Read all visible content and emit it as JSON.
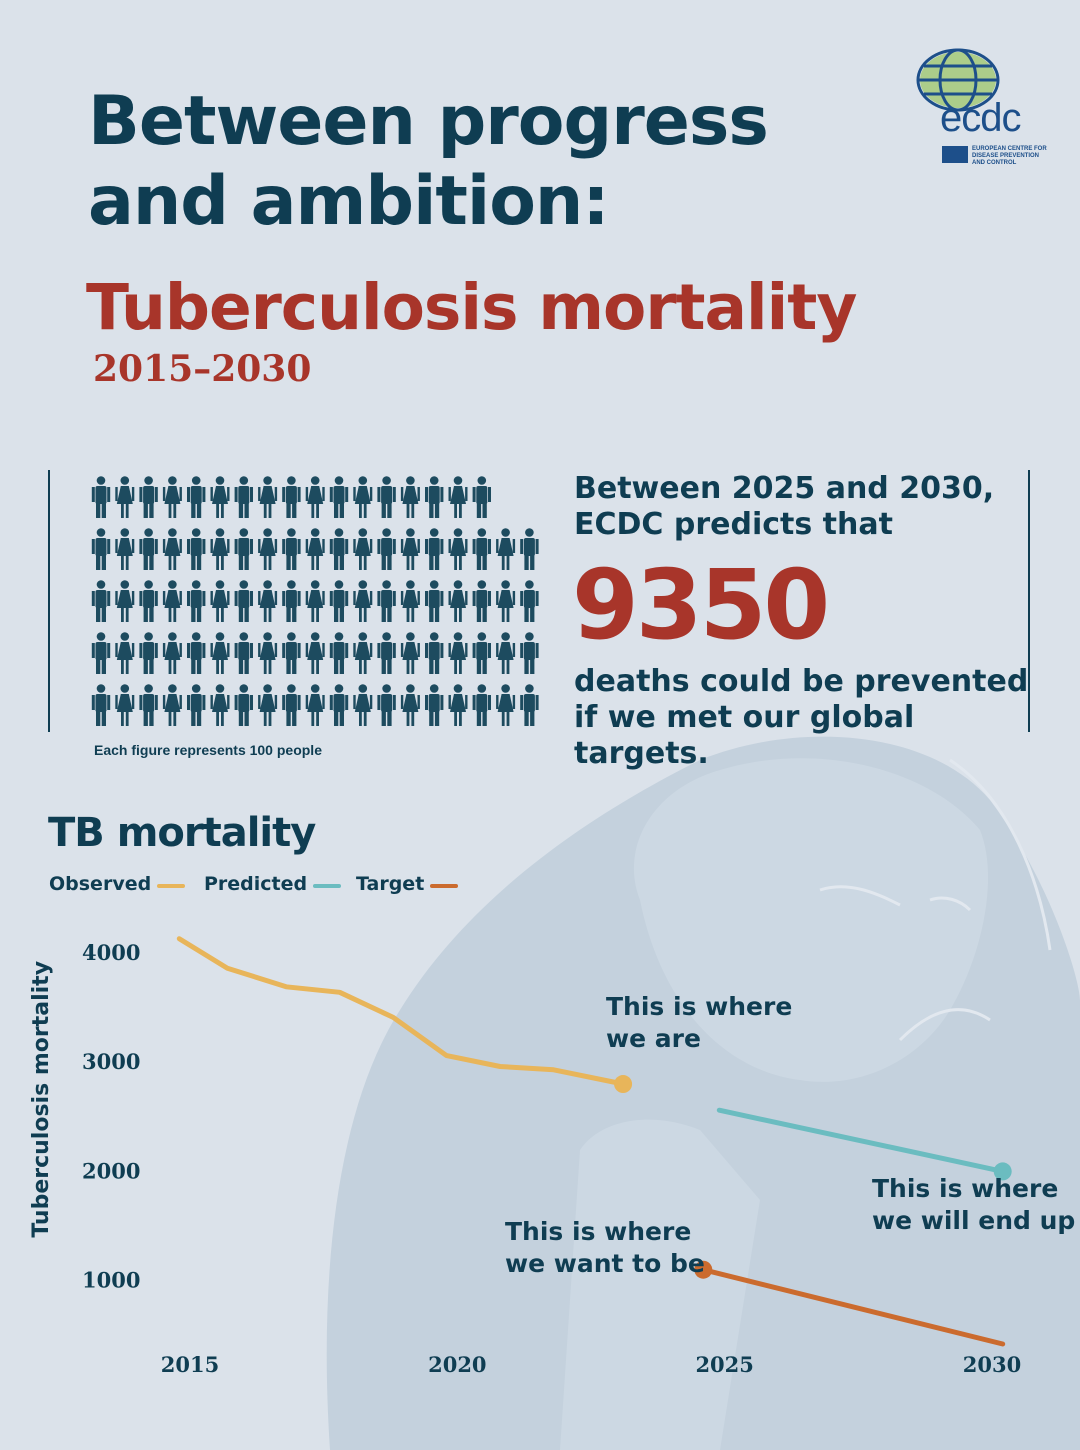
{
  "header": {
    "title_line1": "Between progress",
    "title_line2": "and ambition:",
    "subtitle": "Tuberculosis mortality",
    "years": "2015–2030"
  },
  "logo": {
    "wordmark": "ecdc",
    "subtext": "EUROPEAN CENTRE FOR DISEASE PREVENTION AND CONTROL",
    "icon": "globe-icon"
  },
  "pictogram": {
    "caption": "Each figure represents 100 people",
    "icon_count": 93,
    "icon_value": 100,
    "icon": "person-icon",
    "color": "#1d4b5f"
  },
  "stat": {
    "lead_line1": "Between 2025 and 2030,",
    "lead_line2": "ECDC predicts that",
    "number": "9350",
    "tail_line1": "deaths could be prevented",
    "tail_line2": "if we met our global targets."
  },
  "chart_data": {
    "type": "line",
    "title": "TB mortality",
    "ylabel": "Tuberculosis mortality",
    "xlabel": "",
    "x_ticks": [
      "2015",
      "2020",
      "2025",
      "2030"
    ],
    "y_ticks": [
      "1000",
      "2000",
      "3000",
      "4000"
    ],
    "xlim": [
      2015,
      2030
    ],
    "ylim": [
      300,
      4200
    ],
    "grid": false,
    "legend_position": "top-left",
    "series": [
      {
        "name": "Observed",
        "color": "#e8b55a",
        "points": [
          [
            2014.8,
            4120
          ],
          [
            2015.7,
            3850
          ],
          [
            2016.8,
            3680
          ],
          [
            2017.8,
            3630
          ],
          [
            2018.8,
            3400
          ],
          [
            2019.8,
            3050
          ],
          [
            2020.8,
            2950
          ],
          [
            2021.8,
            2920
          ],
          [
            2023.1,
            2790
          ]
        ],
        "end_marker": true
      },
      {
        "name": "Predicted",
        "color": "#6bbcc0",
        "points": [
          [
            2024.9,
            2550
          ],
          [
            2030.2,
            1990
          ]
        ],
        "end_marker": true
      },
      {
        "name": "Target",
        "color": "#cb6b2e",
        "points": [
          [
            2024.6,
            1090
          ],
          [
            2030.2,
            410
          ]
        ],
        "start_marker": true
      }
    ],
    "annotations": [
      {
        "line1": "This is where",
        "line2": "we are"
      },
      {
        "line1": "This is where",
        "line2": "we will end up"
      },
      {
        "line1": "This is where",
        "line2": "we want to be"
      }
    ]
  }
}
